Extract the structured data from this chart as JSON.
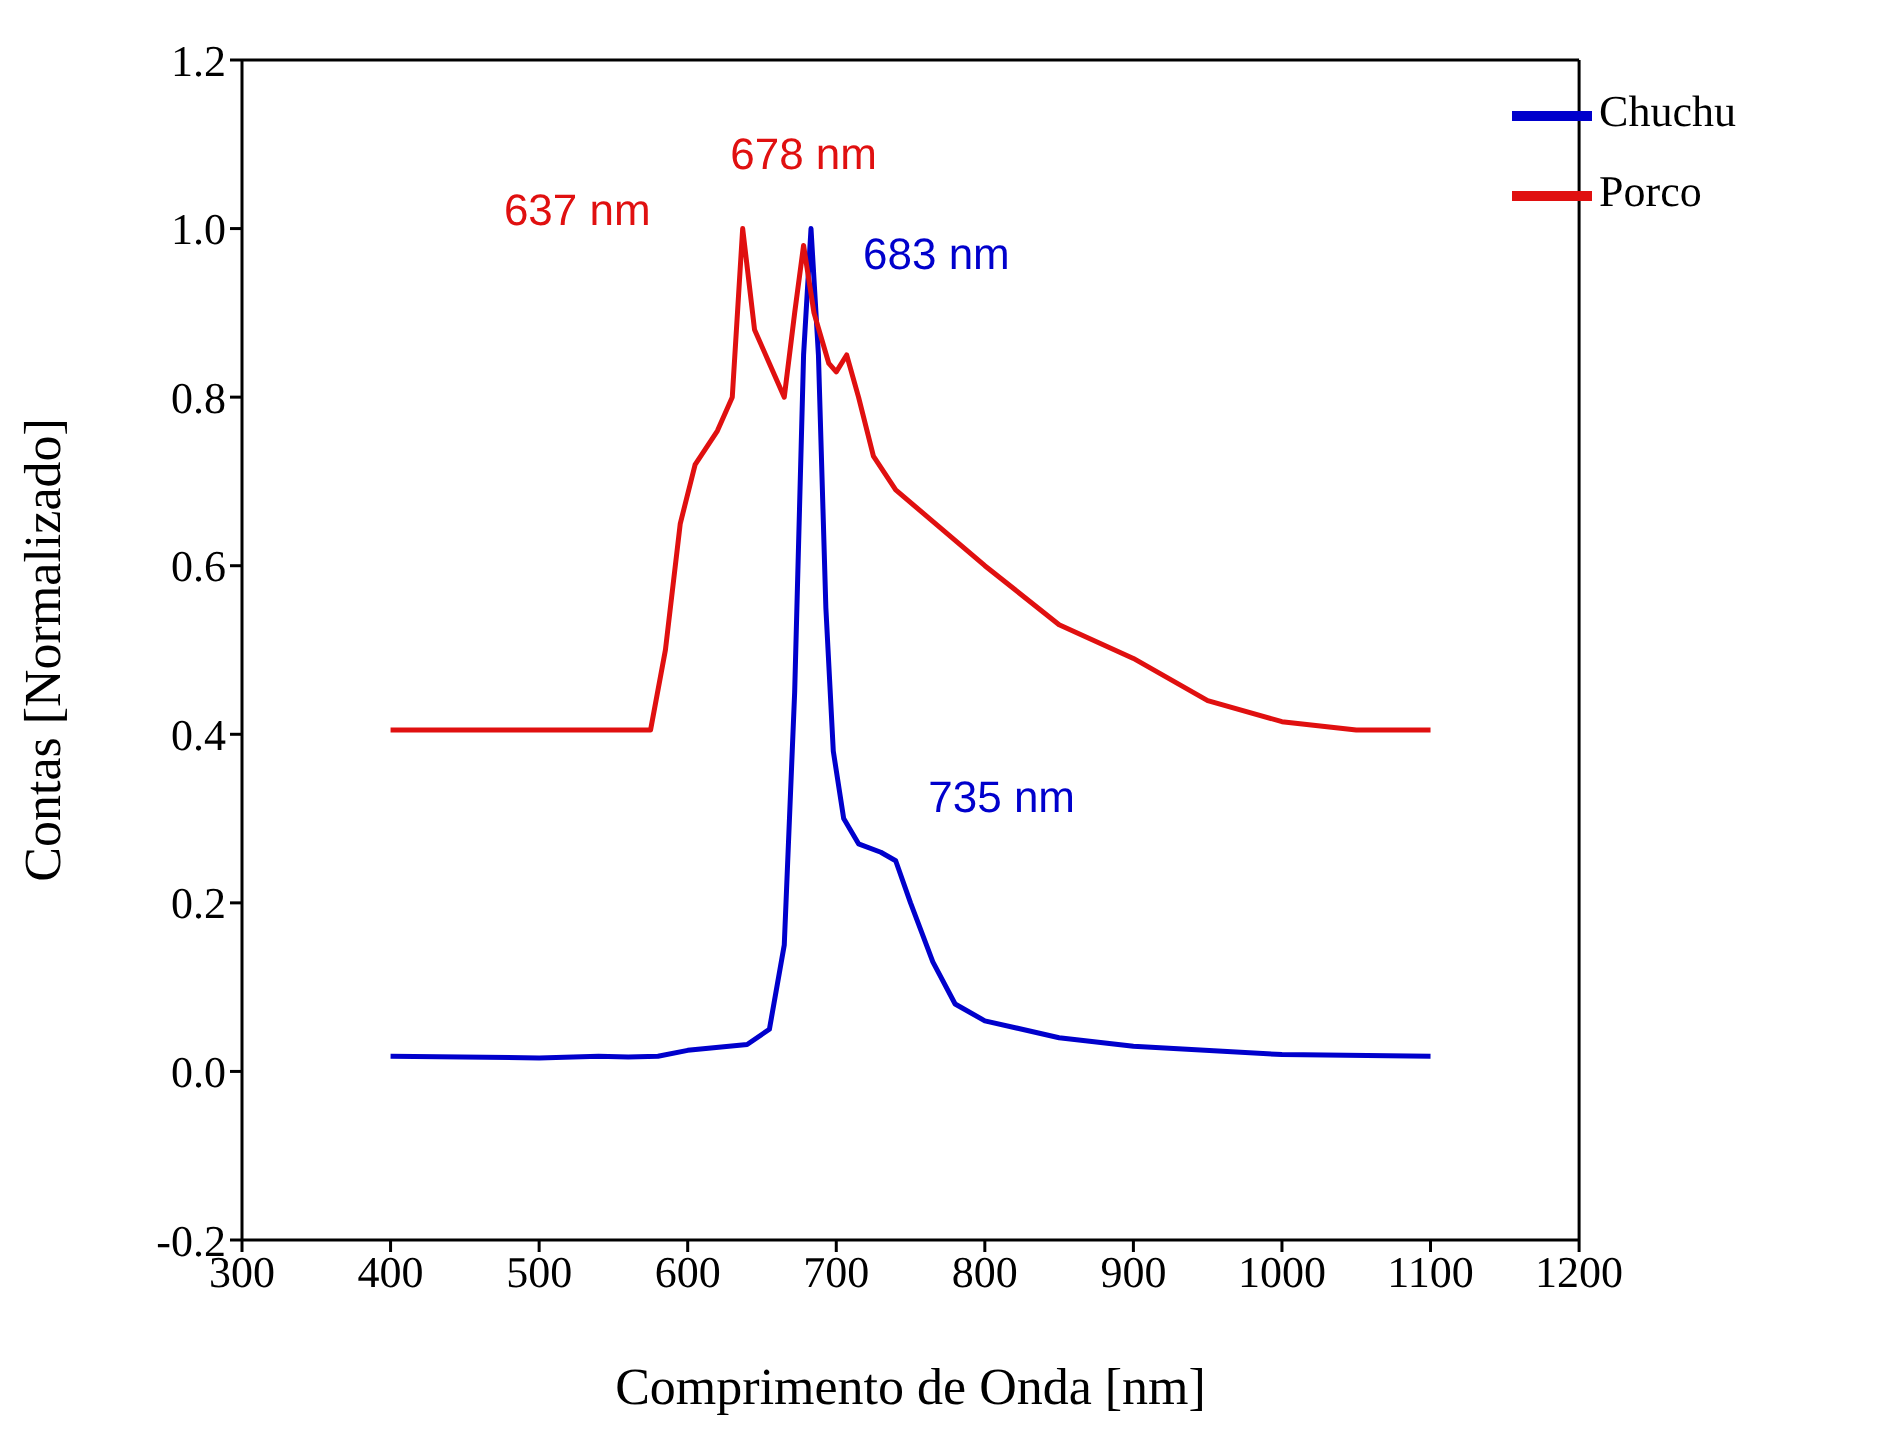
{
  "chart_data": {
    "type": "line",
    "xlabel": "Comprimento de Onda [nm]",
    "ylabel": "Contas [Normalizado]",
    "xlim": [
      300,
      1200
    ],
    "xticks": [
      300,
      400,
      500,
      600,
      700,
      800,
      900,
      1000,
      1100,
      1200
    ],
    "ylim": [
      -0.2,
      1.2
    ],
    "yticks": [
      -0.2,
      {
        "value": 0,
        "label": "0.0"
      },
      0.2,
      0.4,
      0.6,
      0.8,
      {
        "value": 1,
        "label": "1.0"
      },
      1.2
    ],
    "legend": "top right",
    "marker": "none",
    "line_style": "solid",
    "series": [
      {
        "name": "Chuchu",
        "color": "#0000cc",
        "x": [
          400,
          500,
          540,
          560,
          580,
          600,
          640,
          655,
          665,
          672,
          678,
          683,
          688,
          693,
          698,
          705,
          715,
          730,
          740,
          750,
          765,
          780,
          800,
          850,
          900,
          1000,
          1100
        ],
        "values": [
          0.018,
          0.016,
          0.018,
          0.017,
          0.018,
          0.025,
          0.032,
          0.05,
          0.15,
          0.45,
          0.85,
          1.0,
          0.85,
          0.55,
          0.38,
          0.3,
          0.27,
          0.26,
          0.25,
          0.2,
          0.13,
          0.08,
          0.06,
          0.04,
          0.03,
          0.02,
          0.018
        ]
      },
      {
        "name": "Porco",
        "color": "#e01010",
        "x": [
          400,
          500,
          575,
          585,
          595,
          605,
          620,
          630,
          637,
          645,
          655,
          665,
          672,
          678,
          685,
          695,
          700,
          707,
          715,
          725,
          740,
          760,
          800,
          850,
          900,
          950,
          1000,
          1050,
          1100
        ],
        "values": [
          0.405,
          0.405,
          0.405,
          0.5,
          0.65,
          0.72,
          0.76,
          0.8,
          1.0,
          0.88,
          0.84,
          0.8,
          0.9,
          0.98,
          0.9,
          0.84,
          0.83,
          0.85,
          0.8,
          0.73,
          0.69,
          0.66,
          0.6,
          0.53,
          0.49,
          0.44,
          0.415,
          0.405,
          0.405
        ]
      }
    ],
    "annotations": [
      {
        "text": "637 nm",
        "x": 637,
        "y": 1.0
      },
      {
        "text": "678 nm",
        "x": 678,
        "y": 0.98
      },
      {
        "text": "683 nm",
        "x": 683,
        "y": 1.0
      },
      {
        "text": "735 nm",
        "x": 735,
        "y": 0.26
      }
    ]
  }
}
